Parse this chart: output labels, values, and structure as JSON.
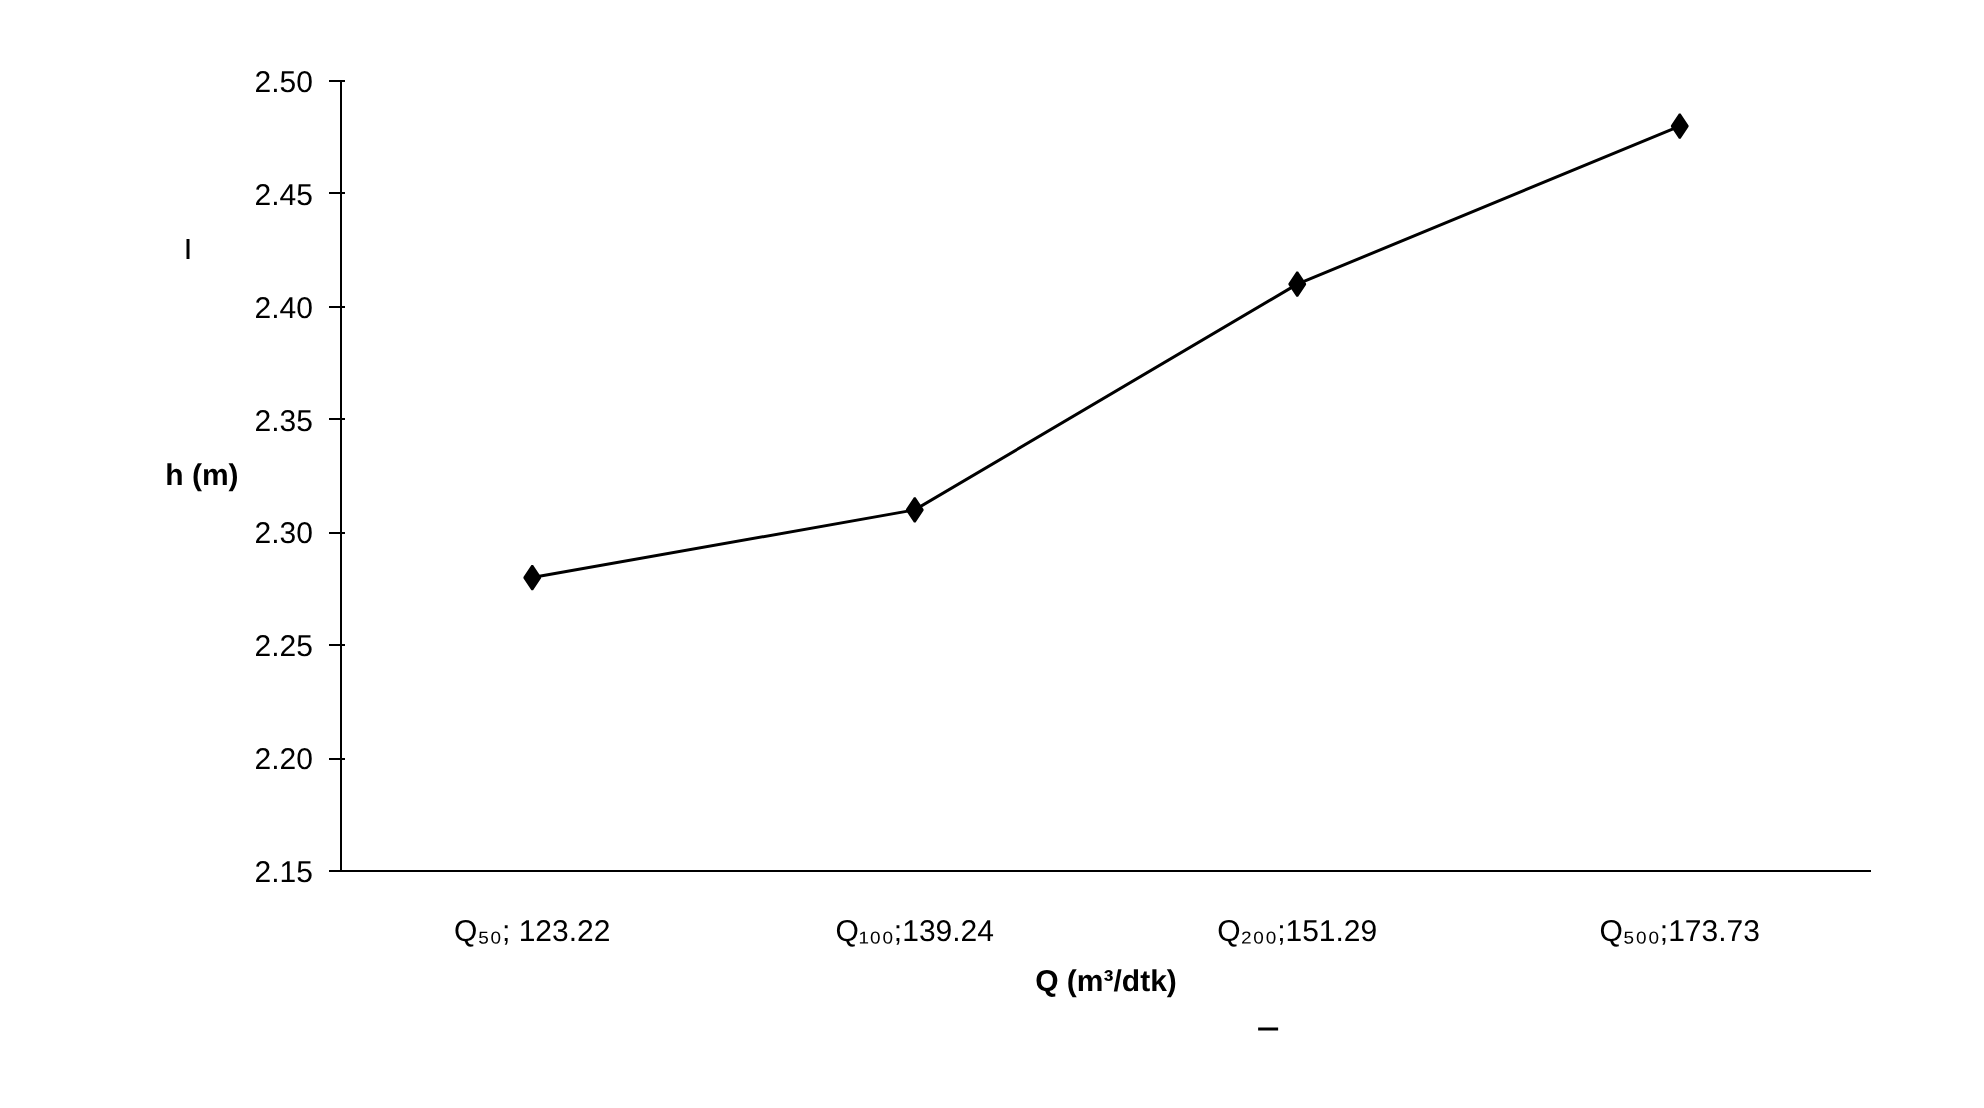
{
  "chart_data": {
    "type": "line",
    "xlabel": "Q (m³/dtk)",
    "ylabel": "h (m)",
    "categories": [
      "Q₅₀; 123.22",
      "Q₁₀₀;139.24",
      "Q₂₀₀;151.29",
      "Q₅₀₀;173.73"
    ],
    "series": [
      {
        "color": "#000000",
        "values": [
          2.28,
          2.31,
          2.41,
          2.48
        ]
      }
    ],
    "ylim": [
      2.15,
      2.5
    ],
    "yticks": [
      {
        "value": 2.15,
        "label": "2.15"
      },
      {
        "value": 2.2,
        "label": "2.20"
      },
      {
        "value": 2.25,
        "label": "2.25"
      },
      {
        "value": 2.3,
        "label": "2.30"
      },
      {
        "value": 2.35,
        "label": "2.35"
      },
      {
        "value": 2.4,
        "label": "2.40"
      },
      {
        "value": 2.45,
        "label": "2.45"
      },
      {
        "value": 2.5,
        "label": "2.50"
      }
    ],
    "marker": "diamond",
    "line_style": "solid",
    "grid": false
  }
}
